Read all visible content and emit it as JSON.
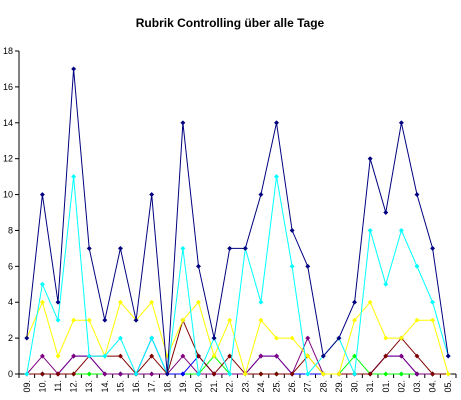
{
  "chart_data": {
    "type": "line",
    "title": "Rubrik Controlling über alle Tage",
    "xlabel": "",
    "ylabel": "",
    "ylim": [
      0,
      18
    ],
    "yticks": [
      "0",
      "2",
      "4",
      "6",
      "8",
      "10",
      "12",
      "14",
      "16",
      "18"
    ],
    "grid": false,
    "legend": "none",
    "categories": [
      "09.",
      "10.",
      "11.",
      "12.",
      "13.",
      "14.",
      "15.",
      "16.",
      "17.",
      "18.",
      "19.",
      "20.",
      "21.",
      "22.",
      "23.",
      "24.",
      "25.",
      "26.",
      "27.",
      "28.",
      "29.",
      "30.",
      "31.",
      "01.",
      "02.",
      "03.",
      "04.",
      "05."
    ],
    "series": [
      {
        "color": "#000080",
        "marker": "diamond",
        "values": [
          2,
          10,
          4,
          17,
          7,
          3,
          7,
          3,
          10,
          0,
          14,
          6,
          2,
          7,
          7,
          10,
          14,
          8,
          6,
          1,
          2,
          4,
          12,
          9,
          14,
          10,
          7,
          1
        ]
      },
      {
        "color": "#00FFFF",
        "marker": "diamond",
        "values": [
          0,
          5,
          3,
          11,
          1,
          1,
          2,
          0,
          2,
          0,
          7,
          0,
          2,
          0,
          7,
          4,
          11,
          6,
          0,
          1,
          2,
          0,
          8,
          5,
          8,
          6,
          4,
          1
        ]
      },
      {
        "color": "#FFFF00",
        "marker": "diamond",
        "values": [
          2,
          4,
          1,
          3,
          3,
          1,
          4,
          3,
          4,
          1,
          3,
          4,
          1,
          3,
          0,
          3,
          2,
          2,
          1,
          0,
          0,
          3,
          4,
          2,
          2,
          3,
          3,
          0
        ]
      },
      {
        "color": "#800000",
        "marker": "diamond",
        "values": [
          0,
          0,
          0,
          0,
          1,
          1,
          1,
          0,
          1,
          0,
          3,
          1,
          0,
          1,
          0,
          0,
          0,
          0,
          1,
          0,
          0,
          0,
          0,
          1,
          2,
          1,
          0,
          0
        ]
      },
      {
        "color": "#800080",
        "marker": "diamond",
        "values": [
          0,
          1,
          0,
          1,
          1,
          0,
          0,
          0,
          0,
          0,
          1,
          0,
          0,
          0,
          0,
          1,
          1,
          0,
          2,
          0,
          0,
          0,
          0,
          1,
          1,
          0,
          0,
          0
        ]
      },
      {
        "color": "#0000FF",
        "marker": "diamond",
        "values": [
          0,
          0,
          0,
          1,
          1,
          0,
          0,
          0,
          2,
          0,
          0,
          1,
          0,
          0,
          0,
          1,
          1,
          0,
          0,
          0,
          0,
          0,
          0,
          1,
          1,
          0,
          0,
          0
        ]
      },
      {
        "color": "#00FF00",
        "marker": "diamond",
        "values": [
          0,
          0,
          0,
          0,
          0,
          0,
          0,
          0,
          0,
          0,
          0,
          0,
          1,
          0,
          0,
          0,
          0,
          0,
          0,
          0,
          0,
          1,
          0,
          0,
          0,
          0,
          0,
          0
        ]
      },
      {
        "color": "#008080",
        "marker": "diamond",
        "values": [
          0,
          0,
          0,
          0,
          0,
          0,
          0,
          0,
          0,
          0,
          0,
          0,
          0,
          0,
          0,
          0,
          0,
          0,
          0,
          0,
          0,
          0,
          0,
          0,
          0,
          0,
          0,
          0
        ]
      }
    ]
  }
}
